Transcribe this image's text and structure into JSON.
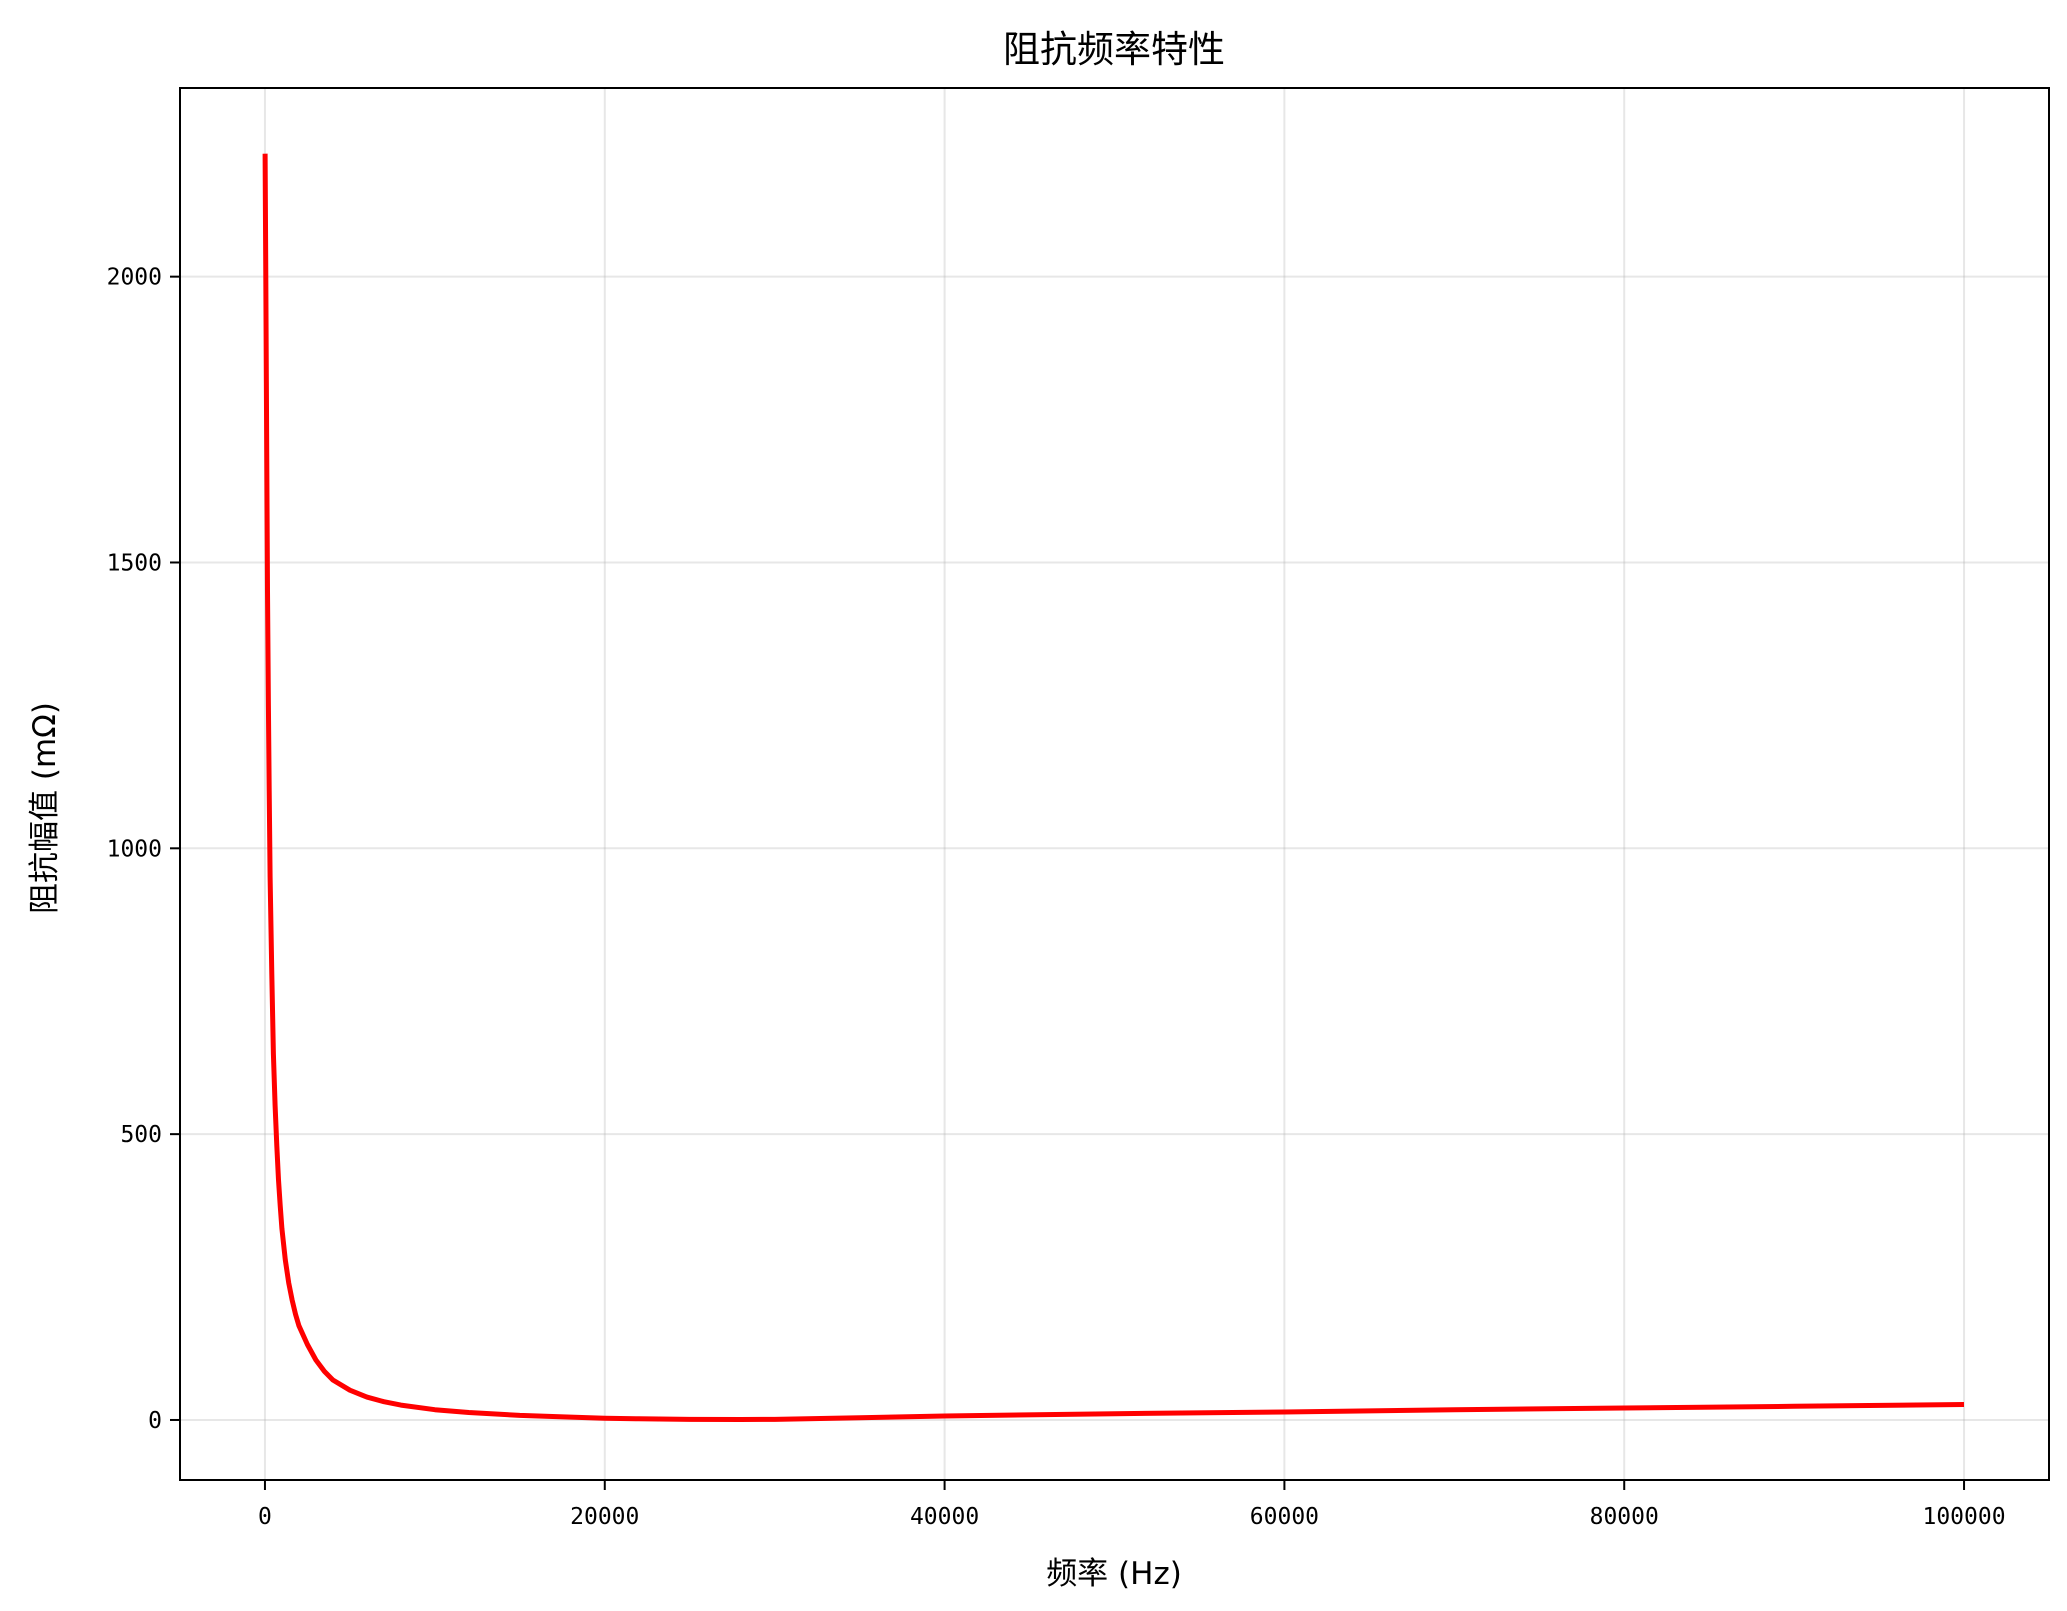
{
  "chart_data": {
    "type": "line",
    "title": "阻抗频率特性",
    "xlabel": "频率 (Hz)",
    "ylabel": "阻抗幅值 (mΩ)",
    "xlim": [
      -5000,
      105000
    ],
    "ylim": [
      -105,
      2330
    ],
    "grid": true,
    "xticks": [
      {
        "value": 0,
        "label": "0"
      },
      {
        "value": 20000,
        "label": "20000"
      },
      {
        "value": 40000,
        "label": "40000"
      },
      {
        "value": 60000,
        "label": "60000"
      },
      {
        "value": 80000,
        "label": "80000"
      },
      {
        "value": 100000,
        "label": "100000"
      }
    ],
    "yticks": [
      {
        "value": 0,
        "label": "0"
      },
      {
        "value": 500,
        "label": "500"
      },
      {
        "value": 1000,
        "label": "1000"
      },
      {
        "value": 1500,
        "label": "1500"
      },
      {
        "value": 2000,
        "label": "2000"
      }
    ],
    "series": [
      {
        "color": "#ff0000",
        "x": [
          10,
          50,
          100,
          150,
          200,
          250,
          300,
          400,
          500,
          600,
          700,
          800,
          900,
          1000,
          1200,
          1400,
          1600,
          1800,
          2000,
          2500,
          3000,
          3500,
          4000,
          5000,
          6000,
          7000,
          8000,
          10000,
          12000,
          15000,
          18000,
          20000,
          22000,
          25000,
          28000,
          30000,
          35000,
          40000,
          50000,
          60000,
          70000,
          80000,
          90000,
          100000
        ],
        "y": [
          2215,
          2000,
          1700,
          1450,
          1250,
          1100,
          950,
          780,
          640,
          550,
          480,
          420,
          375,
          335,
          280,
          240,
          210,
          185,
          165,
          132,
          105,
          85,
          70,
          52,
          40,
          32,
          26,
          18,
          13,
          8,
          5,
          3,
          2,
          1,
          0.8,
          1,
          4,
          7,
          11,
          14,
          18,
          21,
          24,
          27
        ]
      }
    ]
  }
}
